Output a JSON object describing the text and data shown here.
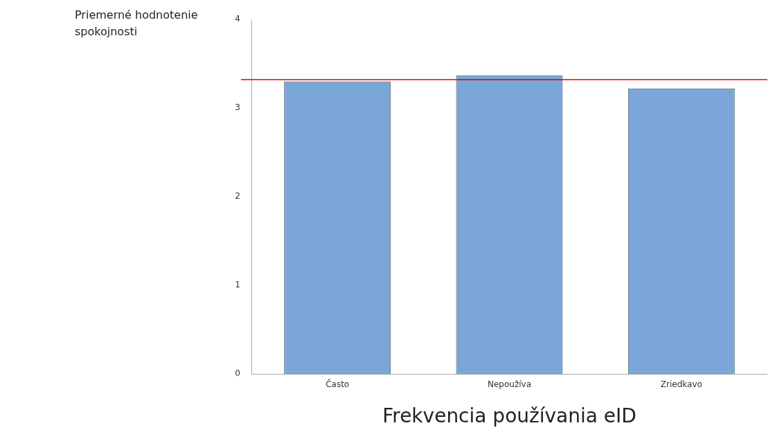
{
  "chart_data": {
    "type": "bar",
    "xlabel": "Frekvencia používania eID",
    "ylabel": "Priemerné hodnotenie spokojnosti",
    "categories": [
      "Často",
      "Nepoužíva",
      "Zriedkavo"
    ],
    "values": [
      3.3,
      3.37,
      3.22
    ],
    "color": "#7ba7d8",
    "ylim": [
      0,
      4
    ],
    "yticks": [
      0,
      1,
      2,
      3,
      4
    ],
    "grid": false,
    "legend": false,
    "ref_lines": [
      {
        "axis": "y",
        "value": 3.32,
        "color": "#e00000"
      }
    ]
  }
}
